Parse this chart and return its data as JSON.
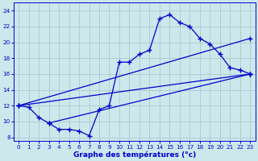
{
  "xlabel": "Graphe des températures (°c)",
  "bg_color": "#cce8ec",
  "grid_color": "#aac8d0",
  "line_color": "#0000cc",
  "hours": [
    0,
    1,
    2,
    3,
    4,
    5,
    6,
    7,
    8,
    9,
    10,
    11,
    12,
    13,
    14,
    15,
    16,
    17,
    18,
    19,
    20,
    21,
    22,
    23
  ],
  "temp_main": [
    12,
    11.8,
    10.5,
    9.8,
    9.0,
    9.0,
    8.8,
    8.2,
    11.5,
    12.0,
    17.5,
    17.5,
    18.5,
    19.0,
    23.0,
    23.5,
    22.5,
    22.0,
    20.5,
    19.8,
    18.5,
    16.8,
    16.5,
    16.0
  ],
  "line1_x": [
    0,
    23
  ],
  "line1_y": [
    12.0,
    16.0
  ],
  "line2_x": [
    0,
    23
  ],
  "line2_y": [
    12.0,
    20.5
  ],
  "line3_x": [
    3,
    23
  ],
  "line3_y": [
    9.8,
    16.0
  ],
  "ylim": [
    7.5,
    25.0
  ],
  "xlim": [
    -0.5,
    23.5
  ],
  "yticks": [
    8,
    10,
    12,
    14,
    16,
    18,
    20,
    22,
    24
  ],
  "xticks": [
    0,
    1,
    2,
    3,
    4,
    5,
    6,
    7,
    8,
    9,
    10,
    11,
    12,
    13,
    14,
    15,
    16,
    17,
    18,
    19,
    20,
    21,
    22,
    23
  ],
  "tick_fontsize": 5.2,
  "xlabel_fontsize": 6.5
}
